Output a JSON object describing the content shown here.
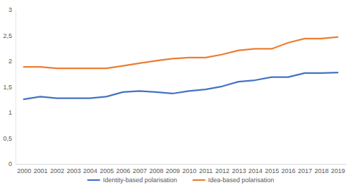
{
  "chart_data": {
    "type": "line",
    "categories": [
      "2000",
      "2001",
      "2002",
      "2003",
      "2004",
      "2005",
      "2006",
      "2007",
      "2008",
      "2009",
      "2010",
      "2011",
      "2012",
      "2013",
      "2014",
      "2015",
      "2016",
      "2017",
      "2018",
      "2019"
    ],
    "series": [
      {
        "name": "Identity-based polarisation",
        "color": "#4472c4",
        "values": [
          1.26,
          1.31,
          1.28,
          1.28,
          1.28,
          1.31,
          1.4,
          1.42,
          1.4,
          1.37,
          1.42,
          1.45,
          1.51,
          1.6,
          1.63,
          1.69,
          1.69,
          1.77,
          1.77,
          1.78
        ]
      },
      {
        "name": "Idea-based polarisation",
        "color": "#ed7d31",
        "values": [
          1.89,
          1.89,
          1.86,
          1.86,
          1.86,
          1.86,
          1.91,
          1.96,
          2.01,
          2.05,
          2.07,
          2.07,
          2.13,
          2.21,
          2.24,
          2.24,
          2.36,
          2.44,
          2.44,
          2.47
        ]
      }
    ],
    "ylim": [
      0,
      3
    ],
    "yticks": [
      0,
      {
        "value": 0.5,
        "label": "0,5"
      },
      1,
      {
        "value": 1.5,
        "label": "1,5"
      },
      2,
      {
        "value": 2.5,
        "label": "2,5"
      },
      3
    ],
    "grid": false,
    "legend": "bottom"
  }
}
